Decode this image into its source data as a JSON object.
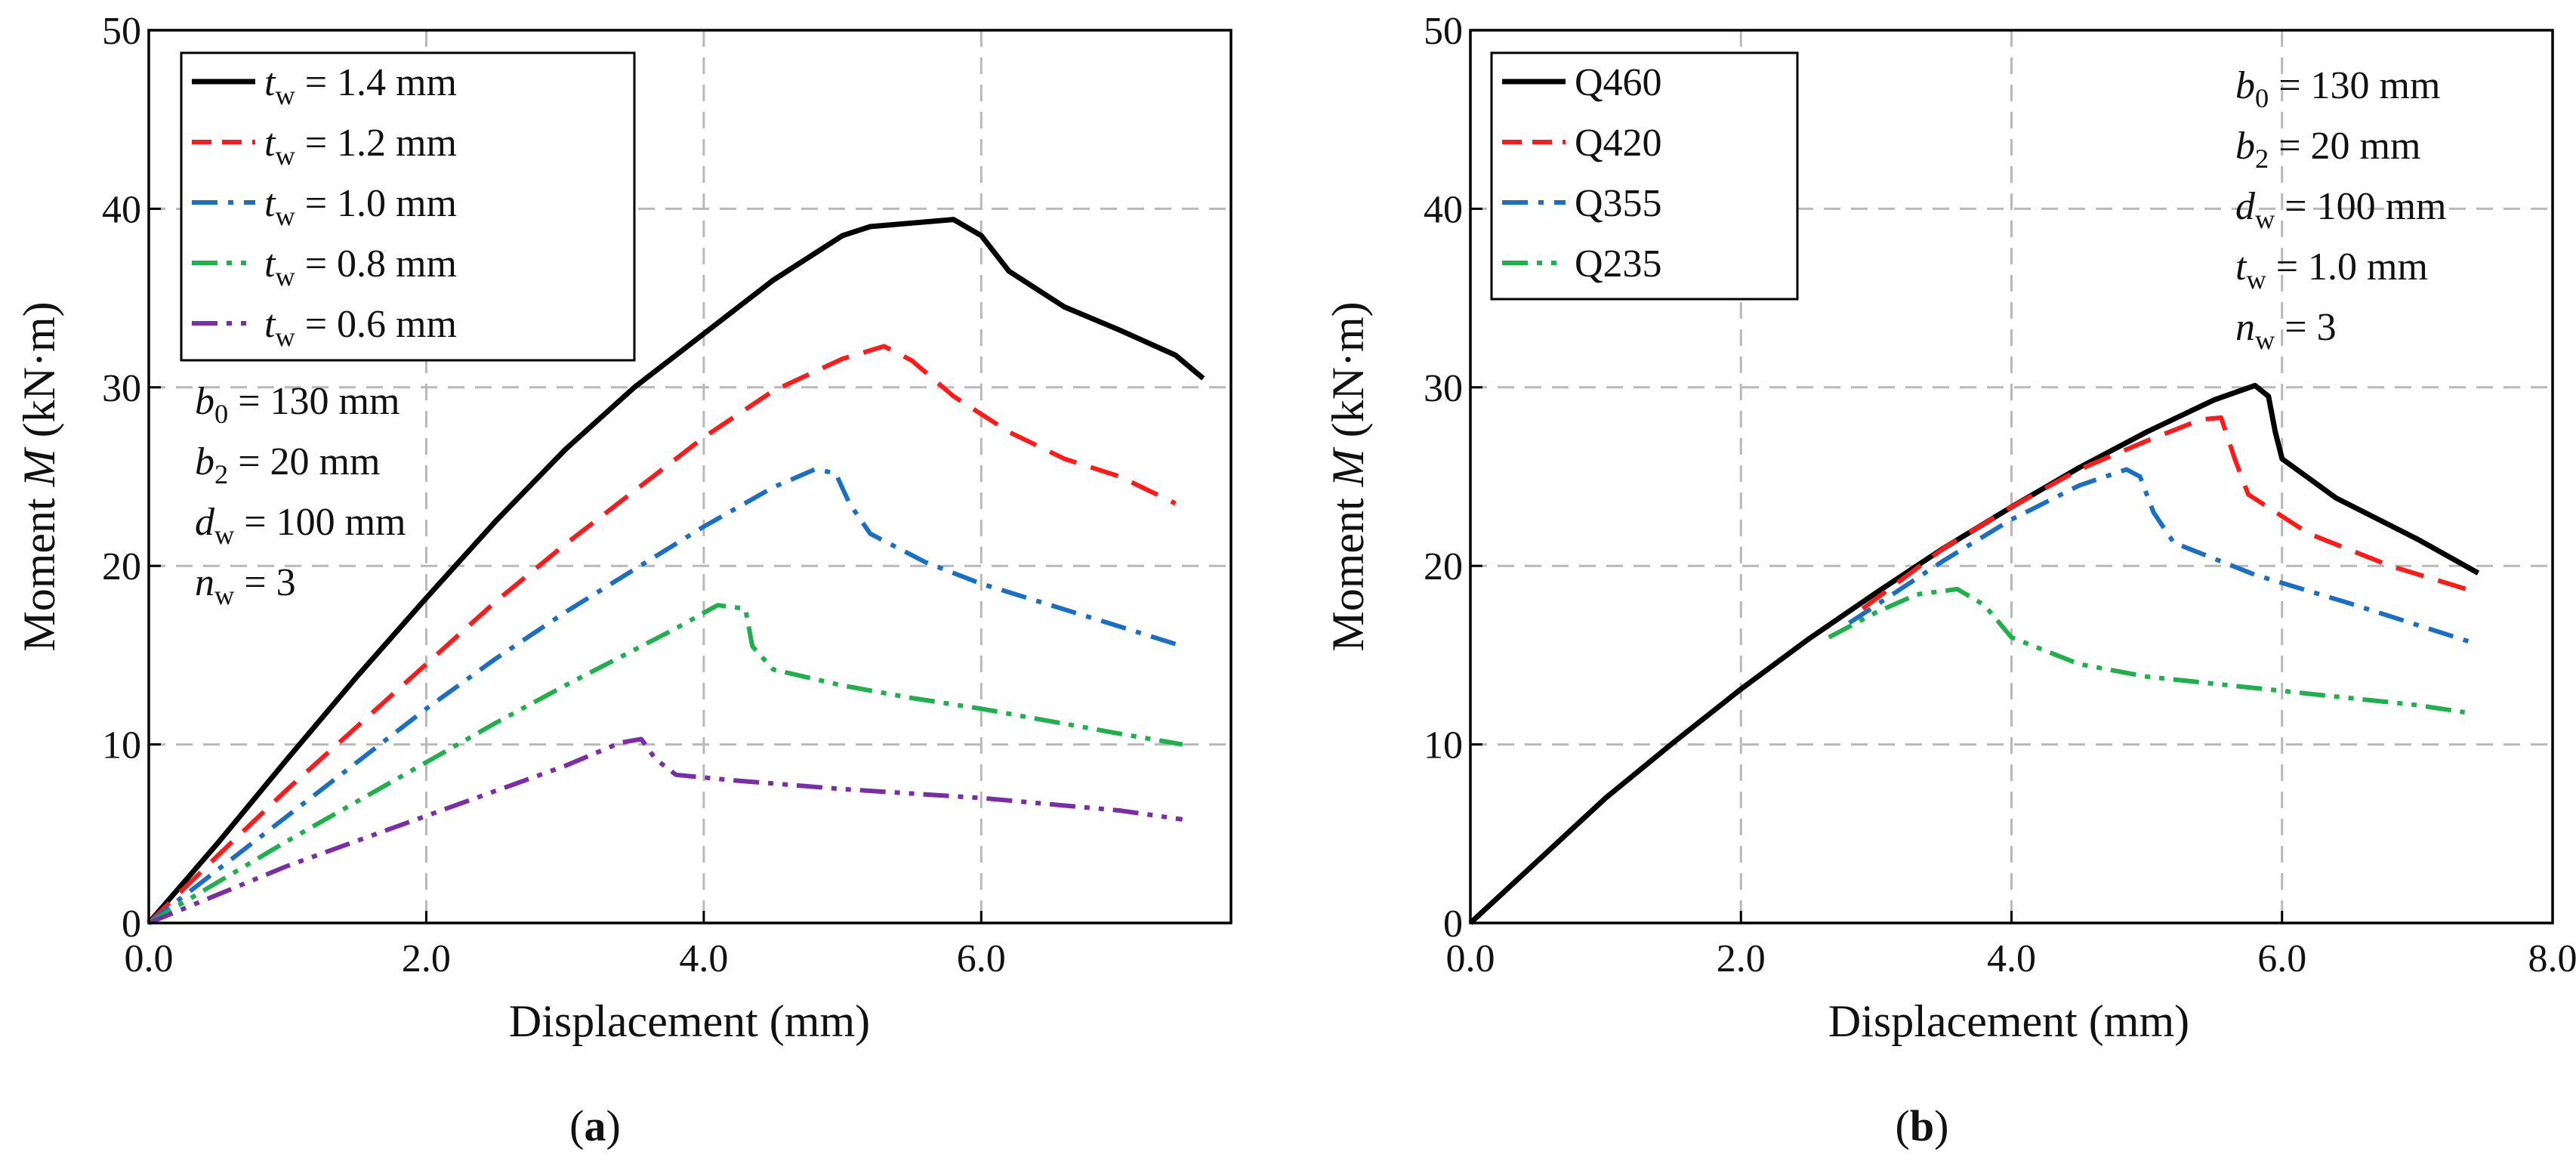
{
  "chart_data": [
    {
      "type": "line",
      "caption": "(a)",
      "xlabel": "Displacement (mm)",
      "ylabel": "Moment M (kN·m)",
      "xlim": [
        0,
        7.8
      ],
      "ylim": [
        0,
        50
      ],
      "xticks": [
        "0.0",
        "2.0",
        "4.0",
        "6.0"
      ],
      "yticks": [
        "0",
        "10",
        "20",
        "30",
        "40",
        "50"
      ],
      "grid": true,
      "legend_position": "top-left",
      "annotations": [
        "b0 = 130 mm",
        "b2 = 20 mm",
        "dw = 100 mm",
        "nw = 3"
      ],
      "series": [
        {
          "name": "tw = 1.4 mm",
          "color": "#000000",
          "style": "solid",
          "points": [
            [
              0,
              0
            ],
            [
              0.5,
              4.5
            ],
            [
              1,
              9.2
            ],
            [
              1.5,
              13.8
            ],
            [
              2,
              18.2
            ],
            [
              2.5,
              22.5
            ],
            [
              3,
              26.5
            ],
            [
              3.5,
              30
            ],
            [
              4,
              33
            ],
            [
              4.5,
              36
            ],
            [
              5,
              38.5
            ],
            [
              5.2,
              39
            ],
            [
              5.5,
              39.2
            ],
            [
              5.8,
              39.4
            ],
            [
              6,
              38.5
            ],
            [
              6.2,
              36.5
            ],
            [
              6.6,
              34.5
            ],
            [
              7,
              33.2
            ],
            [
              7.4,
              31.8
            ],
            [
              7.6,
              30.5
            ]
          ]
        },
        {
          "name": "tw = 1.2 mm",
          "color": "#ff1a1a",
          "style": "dashed",
          "points": [
            [
              0,
              0
            ],
            [
              0.5,
              3.8
            ],
            [
              1,
              7.5
            ],
            [
              1.5,
              11
            ],
            [
              2,
              14.5
            ],
            [
              2.5,
              18
            ],
            [
              3,
              21.2
            ],
            [
              3.5,
              24.2
            ],
            [
              4,
              27.2
            ],
            [
              4.5,
              29.8
            ],
            [
              5,
              31.6
            ],
            [
              5.3,
              32.3
            ],
            [
              5.5,
              31.5
            ],
            [
              5.8,
              29.5
            ],
            [
              6.2,
              27.5
            ],
            [
              6.6,
              26
            ],
            [
              7,
              25
            ],
            [
              7.4,
              23.5
            ]
          ]
        },
        {
          "name": "tw = 1.0 mm",
          "color": "#1a6fc4",
          "style": "dashdot",
          "points": [
            [
              0,
              0
            ],
            [
              0.5,
              3
            ],
            [
              1,
              6
            ],
            [
              1.5,
              9
            ],
            [
              2,
              12
            ],
            [
              2.5,
              14.8
            ],
            [
              3,
              17.4
            ],
            [
              3.5,
              19.8
            ],
            [
              4,
              22.2
            ],
            [
              4.5,
              24.4
            ],
            [
              4.8,
              25.4
            ],
            [
              4.95,
              25.2
            ],
            [
              5.05,
              23.5
            ],
            [
              5.2,
              21.8
            ],
            [
              5.6,
              20.2
            ],
            [
              6,
              19
            ],
            [
              6.5,
              17.8
            ],
            [
              7,
              16.6
            ],
            [
              7.45,
              15.5
            ]
          ]
        },
        {
          "name": "tw = 0.8 mm",
          "color": "#1db04b",
          "style": "dashdotdot",
          "points": [
            [
              0,
              0
            ],
            [
              0.5,
              2.3
            ],
            [
              1,
              4.6
            ],
            [
              1.5,
              6.8
            ],
            [
              2,
              9
            ],
            [
              2.5,
              11.2
            ],
            [
              3,
              13.3
            ],
            [
              3.5,
              15.3
            ],
            [
              3.8,
              16.5
            ],
            [
              4.1,
              17.8
            ],
            [
              4.3,
              17.6
            ],
            [
              4.35,
              15.5
            ],
            [
              4.5,
              14.2
            ],
            [
              5,
              13.3
            ],
            [
              5.5,
              12.6
            ],
            [
              6,
              12
            ],
            [
              6.5,
              11.3
            ],
            [
              7,
              10.6
            ],
            [
              7.45,
              10
            ]
          ]
        },
        {
          "name": "tw = 0.6 mm",
          "color": "#7b2ca8",
          "style": "dashdotdot",
          "points": [
            [
              0,
              0
            ],
            [
              0.5,
              1.6
            ],
            [
              1,
              3.2
            ],
            [
              1.5,
              4.6
            ],
            [
              2,
              6
            ],
            [
              2.5,
              7.4
            ],
            [
              3,
              8.8
            ],
            [
              3.4,
              10.1
            ],
            [
              3.55,
              10.3
            ],
            [
              3.65,
              9.2
            ],
            [
              3.8,
              8.3
            ],
            [
              4.2,
              8
            ],
            [
              5,
              7.5
            ],
            [
              6,
              7
            ],
            [
              7,
              6.3
            ],
            [
              7.45,
              5.8
            ]
          ]
        }
      ]
    },
    {
      "type": "line",
      "caption": "(b)",
      "xlabel": "Displacement (mm)",
      "ylabel": "Moment M (kN·m)",
      "xlim": [
        0,
        8
      ],
      "ylim": [
        0,
        50
      ],
      "xticks": [
        "0.0",
        "2.0",
        "4.0",
        "6.0",
        "8.0"
      ],
      "yticks": [
        "0",
        "10",
        "20",
        "30",
        "40",
        "50"
      ],
      "grid": true,
      "legend_position": "top-left",
      "annotations": [
        "b0 = 130 mm",
        "b2 = 20 mm",
        "dw = 100 mm",
        "tw = 1.0 mm",
        "nw = 3"
      ],
      "series": [
        {
          "name": "Q460",
          "color": "#000000",
          "style": "solid",
          "points": [
            [
              0,
              0
            ],
            [
              0.5,
              3.5
            ],
            [
              1,
              7
            ],
            [
              1.5,
              10.1
            ],
            [
              2,
              13.1
            ],
            [
              2.5,
              15.9
            ],
            [
              3,
              18.5
            ],
            [
              3.5,
              21
            ],
            [
              4,
              23.3
            ],
            [
              4.5,
              25.5
            ],
            [
              5,
              27.5
            ],
            [
              5.5,
              29.3
            ],
            [
              5.8,
              30.1
            ],
            [
              5.9,
              29.5
            ],
            [
              5.95,
              27.5
            ],
            [
              6,
              26
            ],
            [
              6.4,
              23.8
            ],
            [
              7,
              21.5
            ],
            [
              7.45,
              19.6
            ]
          ]
        },
        {
          "name": "Q420",
          "color": "#ff1a1a",
          "style": "dashed",
          "points": [
            [
              2.9,
              17.6
            ],
            [
              3.5,
              21
            ],
            [
              4,
              23.3
            ],
            [
              4.5,
              25.4
            ],
            [
              5,
              27
            ],
            [
              5.4,
              28.2
            ],
            [
              5.55,
              28.3
            ],
            [
              5.65,
              26
            ],
            [
              5.75,
              24
            ],
            [
              6.2,
              21.8
            ],
            [
              6.8,
              20
            ],
            [
              7.45,
              18.5
            ]
          ]
        },
        {
          "name": "Q355",
          "color": "#1a6fc4",
          "style": "dashdot",
          "points": [
            [
              2.8,
              16.8
            ],
            [
              3.5,
              20.3
            ],
            [
              4,
              22.6
            ],
            [
              4.5,
              24.5
            ],
            [
              4.85,
              25.4
            ],
            [
              4.95,
              25
            ],
            [
              5.05,
              23
            ],
            [
              5.2,
              21.3
            ],
            [
              5.8,
              19.5
            ],
            [
              6.5,
              17.9
            ],
            [
              7.45,
              15.6
            ]
          ]
        },
        {
          "name": "Q235",
          "color": "#1db04b",
          "style": "dashdotdot",
          "points": [
            [
              2.65,
              16
            ],
            [
              3,
              17.4
            ],
            [
              3.3,
              18.4
            ],
            [
              3.6,
              18.7
            ],
            [
              3.8,
              17.8
            ],
            [
              4,
              16
            ],
            [
              4.5,
              14.5
            ],
            [
              5,
              13.8
            ],
            [
              6,
              13
            ],
            [
              7,
              12.2
            ],
            [
              7.35,
              11.8
            ]
          ]
        }
      ]
    }
  ]
}
